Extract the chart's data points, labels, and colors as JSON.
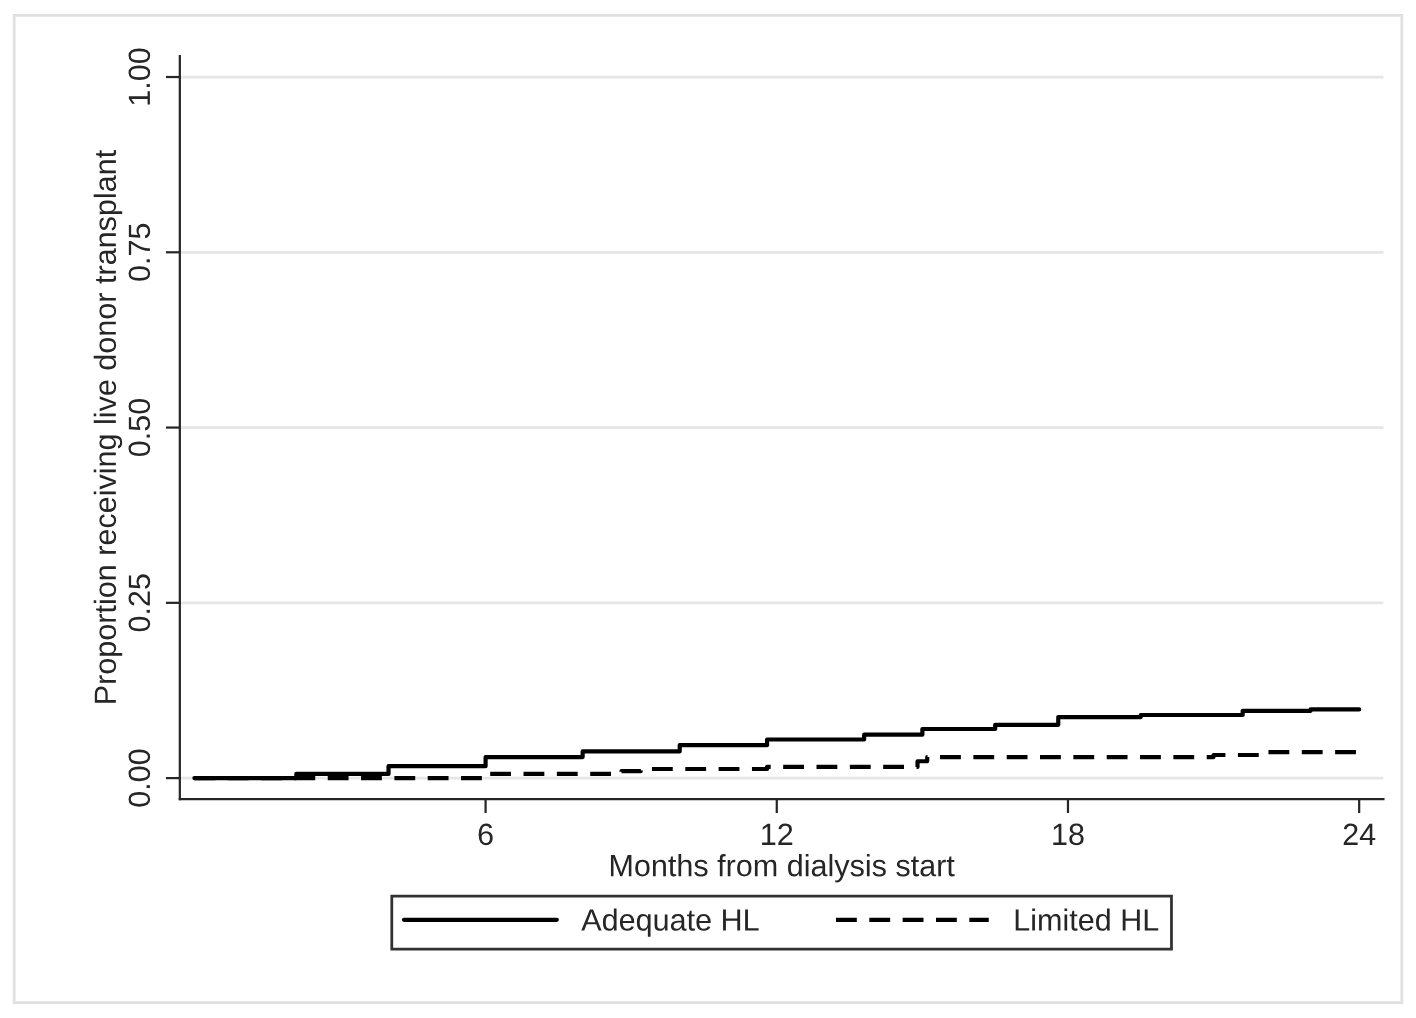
{
  "chart_data": {
    "type": "step",
    "xlabel": "Months from dialysis start",
    "ylabel": "Proportion receiving live donor transplant",
    "xlim": [
      -0.3,
      24.5
    ],
    "xticks": [
      6,
      12,
      18,
      24
    ],
    "ylim": [
      -0.03,
      1.03
    ],
    "yticks": [
      {
        "value": 0,
        "label": "0.00"
      },
      {
        "value": 0.25,
        "label": "0.25"
      },
      {
        "value": 0.5,
        "label": "0.50"
      },
      {
        "value": 0.75,
        "label": "0.75"
      },
      {
        "value": 1,
        "label": "1.00"
      }
    ],
    "grid": "y",
    "legend": "bottom",
    "series": [
      {
        "name": "Adequate HL",
        "color": "#000000",
        "line_style": "solid",
        "x": [
          0,
          1,
          2.1,
          4,
          6,
          8,
          10,
          11.8,
          13.8,
          15,
          16.5,
          17.8,
          19.5,
          21.6,
          23,
          24
        ],
        "values": [
          0,
          0,
          0.006,
          0.017,
          0.03,
          0.038,
          0.047,
          0.055,
          0.062,
          0.07,
          0.076,
          0.087,
          0.09,
          0.096,
          0.098,
          0.098
        ]
      },
      {
        "name": "Limited HL",
        "color": "#000000",
        "line_style": "dashed",
        "x": [
          0,
          2.8,
          6,
          8.8,
          9.2,
          11.8,
          14.9,
          15.1,
          18,
          21,
          22,
          24
        ],
        "values": [
          0,
          0,
          0.006,
          0.01,
          0.013,
          0.016,
          0.024,
          0.03,
          0.03,
          0.033,
          0.037,
          0.037
        ]
      }
    ]
  }
}
